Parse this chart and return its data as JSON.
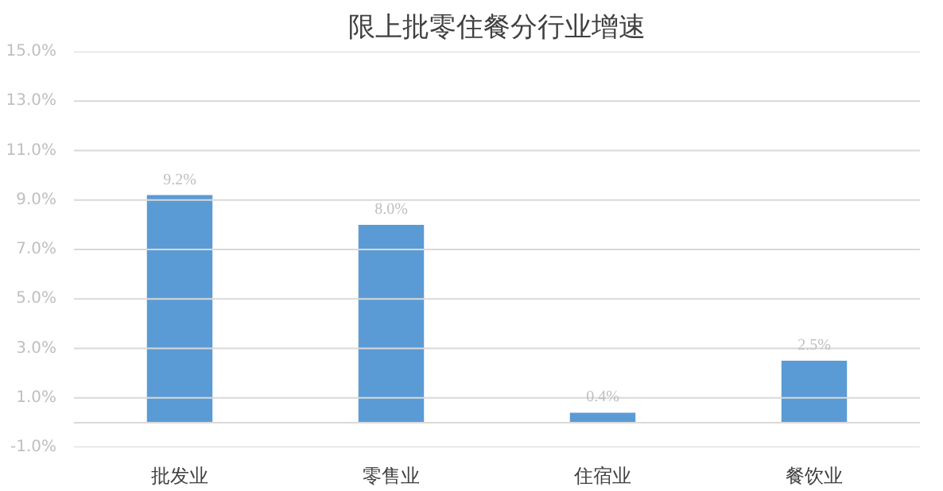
{
  "chart_data": {
    "type": "bar",
    "title": "限上批零住餐分行业增速",
    "categories": [
      "批发业",
      "零售业",
      "住宿业",
      "餐饮业"
    ],
    "values": [
      9.2,
      8.0,
      0.4,
      2.5
    ],
    "value_labels": [
      "9.2%",
      "8.0%",
      "0.4%",
      "2.5%"
    ],
    "color": "#5b9bd5",
    "ylim": [
      -1,
      15
    ],
    "yticks": [
      {
        "value": -1,
        "label": "-1.0%"
      },
      {
        "value": 1,
        "label": "1.0%"
      },
      {
        "value": 3,
        "label": "3.0%"
      },
      {
        "value": 5,
        "label": "5.0%"
      },
      {
        "value": 7,
        "label": "7.0%"
      },
      {
        "value": 9,
        "label": "9.0%"
      },
      {
        "value": 11,
        "label": "11.0%"
      },
      {
        "value": 13,
        "label": "13.0%"
      },
      {
        "value": 15,
        "label": "15.0%"
      }
    ],
    "grid": "y"
  }
}
